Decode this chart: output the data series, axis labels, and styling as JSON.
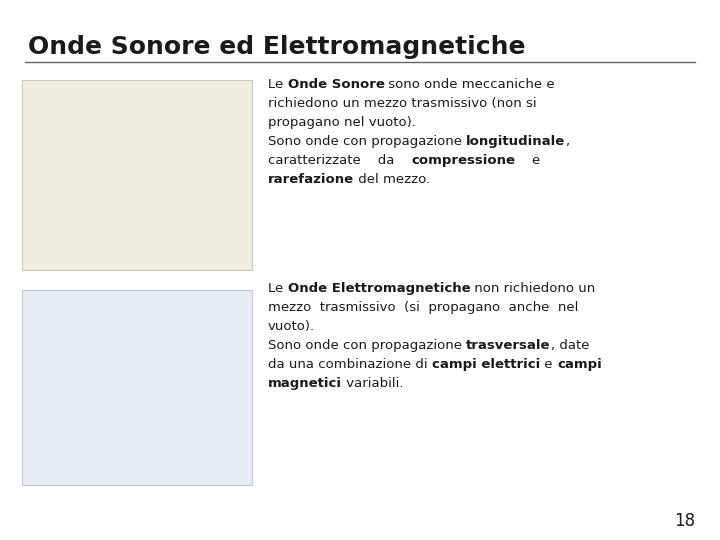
{
  "title": "Onde Sonore ed Elettromagnetiche",
  "background_color": "#ffffff",
  "title_color": "#1a1a1a",
  "title_fontsize": 18,
  "body_fontsize": 9.5,
  "line_color": "#666666",
  "page_number": "18",
  "block1_text": [
    [
      [
        "Le ",
        false
      ],
      [
        "Onde Sonore",
        true
      ],
      [
        " sono onde meccaniche e",
        false
      ]
    ],
    [
      [
        "richiedono un mezzo trasmissivo (non si",
        false
      ]
    ],
    [
      [
        "propagano nel vuoto).",
        false
      ]
    ],
    [
      [
        "Sono onde con propagazione ",
        false
      ],
      [
        "longitudinale",
        true
      ],
      [
        ",",
        false
      ]
    ],
    [
      [
        "caratterizzate    da    ",
        false
      ],
      [
        "compressione",
        true
      ],
      [
        "    e",
        false
      ]
    ],
    [
      [
        "rarefazione",
        true
      ],
      [
        " del mezzo.",
        false
      ]
    ]
  ],
  "block2_text": [
    [
      [
        "Le ",
        false
      ],
      [
        "Onde Elettromagnetiche",
        true
      ],
      [
        " non richiedono un",
        false
      ]
    ],
    [
      [
        "mezzo  trasmissivo  (si  propagano  anche  nel",
        false
      ]
    ],
    [
      [
        "vuoto).",
        false
      ]
    ],
    [
      [
        "Sono onde con propagazione ",
        false
      ],
      [
        "trasversale",
        true
      ],
      [
        ", date",
        false
      ]
    ],
    [
      [
        "da una combinazione di ",
        false
      ],
      [
        "campi elettrici",
        true
      ],
      [
        " e ",
        false
      ],
      [
        "campi",
        true
      ]
    ],
    [
      [
        "magnetici",
        true
      ],
      [
        " variabili.",
        false
      ]
    ]
  ]
}
